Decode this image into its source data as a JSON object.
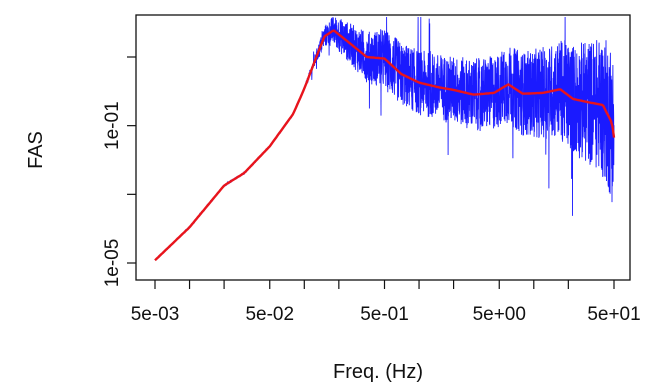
{
  "chart_data": {
    "type": "line",
    "title": "",
    "xlabel": "Freq. (Hz)",
    "ylabel": "FAS",
    "x_scale": "log",
    "y_scale": "log",
    "xlim": [
      0.003,
      70
    ],
    "ylim": [
      3e-06,
      3000
    ],
    "x_ticks": [
      {
        "value": 0.005,
        "label": "5e-03"
      },
      {
        "value": 0.01,
        "label": ""
      },
      {
        "value": 0.02,
        "label": ""
      },
      {
        "value": 0.05,
        "label": "5e-02"
      },
      {
        "value": 0.1,
        "label": ""
      },
      {
        "value": 0.2,
        "label": ""
      },
      {
        "value": 0.5,
        "label": "5e-01"
      },
      {
        "value": 1,
        "label": ""
      },
      {
        "value": 2,
        "label": ""
      },
      {
        "value": 5,
        "label": "5e+00"
      },
      {
        "value": 10,
        "label": ""
      },
      {
        "value": 20,
        "label": ""
      },
      {
        "value": 50,
        "label": "5e+01"
      }
    ],
    "y_ticks": [
      {
        "value": 1e-05,
        "label": "1e-05"
      },
      {
        "value": 0.001,
        "label": ""
      },
      {
        "value": 0.1,
        "label": "1e-01"
      },
      {
        "value": 10,
        "label": ""
      }
    ],
    "grid": false,
    "series": [
      {
        "color": "#1a1aff",
        "style": "noisy-raw-spectrum",
        "noise_envelope": [
          {
            "x": 0.1,
            "amp": 0.05
          },
          {
            "x": 0.2,
            "amp": 0.5
          },
          {
            "x": 0.5,
            "amp": 0.9
          },
          {
            "x": 2,
            "amp": 1.0
          },
          {
            "x": 5,
            "amp": 1.1
          },
          {
            "x": 15,
            "amp": 1.4
          },
          {
            "x": 40,
            "amp": 2.0
          },
          {
            "x": 50,
            "amp": 2.4
          }
        ]
      },
      {
        "color": "#e8141c",
        "style": "smoothed",
        "points": [
          [
            0.005,
            1.2e-05
          ],
          [
            0.01,
            0.00011
          ],
          [
            0.02,
            0.0018
          ],
          [
            0.03,
            0.0042
          ],
          [
            0.05,
            0.025
          ],
          [
            0.08,
            0.22
          ],
          [
            0.1,
            1.2
          ],
          [
            0.13,
            12
          ],
          [
            0.15,
            40
          ],
          [
            0.18,
            60
          ],
          [
            0.25,
            25
          ],
          [
            0.35,
            10
          ],
          [
            0.5,
            9
          ],
          [
            0.7,
            3.2
          ],
          [
            1.0,
            1.8
          ],
          [
            1.5,
            1.3
          ],
          [
            2.0,
            1.1
          ],
          [
            3.0,
            0.8
          ],
          [
            4.5,
            0.9
          ],
          [
            6.0,
            1.6
          ],
          [
            8.0,
            0.85
          ],
          [
            12,
            0.9
          ],
          [
            17,
            1.15
          ],
          [
            22,
            0.6
          ],
          [
            30,
            0.48
          ],
          [
            40,
            0.4
          ],
          [
            48,
            0.12
          ],
          [
            50,
            0.045
          ]
        ]
      }
    ]
  }
}
